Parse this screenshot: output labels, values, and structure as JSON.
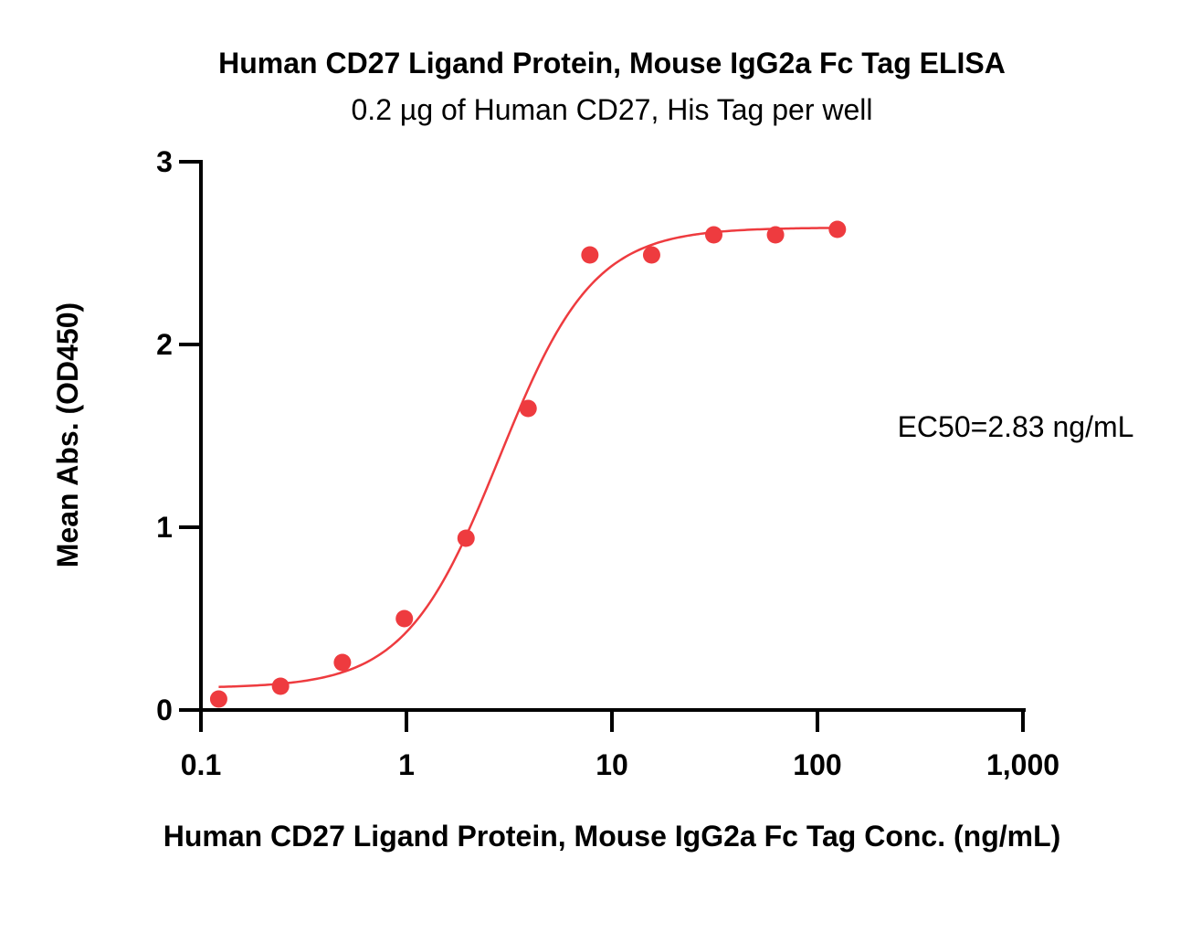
{
  "chart_data": {
    "type": "scatter",
    "title": "Human CD27 Ligand Protein, Mouse IgG2a Fc Tag ELISA",
    "subtitle": "0.2 µg of Human CD27, His Tag per well",
    "xlabel": "Human CD27 Ligand Protein, Mouse IgG2a Fc Tag Conc. (ng/mL)",
    "ylabel": "Mean Abs. (OD450)",
    "x_scale": "log",
    "xlim": [
      0.1,
      1000
    ],
    "ylim": [
      0,
      3
    ],
    "x_ticks": [
      0.1,
      1,
      10,
      100,
      1000
    ],
    "x_tick_labels": [
      "0.1",
      "1",
      "10",
      "100",
      "1,000"
    ],
    "y_ticks": [
      0,
      1,
      2,
      3
    ],
    "y_tick_labels": [
      "0",
      "1",
      "2",
      "3"
    ],
    "grid": false,
    "series": [
      {
        "x": [
          0.122,
          0.244,
          0.488,
          0.977,
          1.95,
          3.91,
          7.81,
          15.6,
          31.3,
          62.5,
          125
        ],
        "y": [
          0.06,
          0.13,
          0.26,
          0.5,
          0.94,
          1.65,
          2.49,
          2.49,
          2.6,
          2.6,
          2.63
        ],
        "color": "#ee3b3f"
      }
    ],
    "fit": {
      "model": "4PL",
      "bottom": 0.12,
      "top": 2.64,
      "ec50": 2.83,
      "hill": 1.9,
      "x_range": [
        0.122,
        125
      ],
      "color": "#ee3b3f"
    },
    "annotations": [
      {
        "text": "EC50=2.83 ng/mL"
      }
    ]
  }
}
